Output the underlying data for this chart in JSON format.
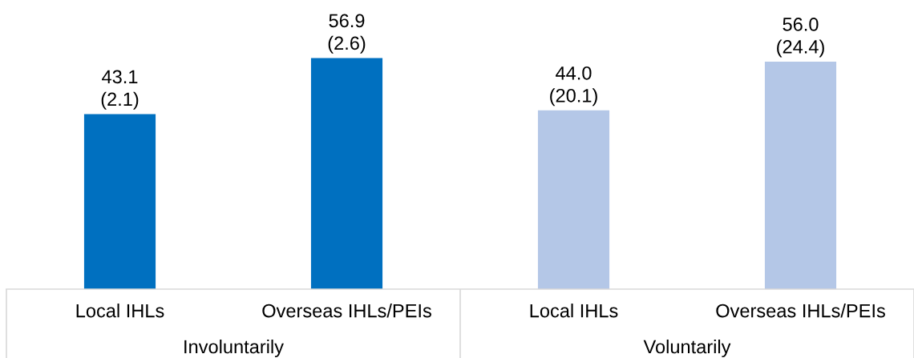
{
  "chart_data": {
    "type": "bar",
    "categories": [
      "Local IHLs",
      "Overseas IHLs/PEIs",
      "Local IHLs",
      "Overseas IHLs/PEIs"
    ],
    "values": [
      43.1,
      56.9,
      44.0,
      56.0
    ],
    "colors": [
      "#0070c0",
      "#0070c0",
      "#b4c7e7",
      "#b4c7e7"
    ],
    "value_labels": [
      "43.1\n(2.1)",
      "56.9\n(2.6)",
      "44.0\n(20.1)",
      "56.0\n(24.4)"
    ],
    "annotations": [
      "Involuntarily",
      "Voluntarily"
    ],
    "tick_labels": "x",
    "grid": false,
    "legend": false
  }
}
